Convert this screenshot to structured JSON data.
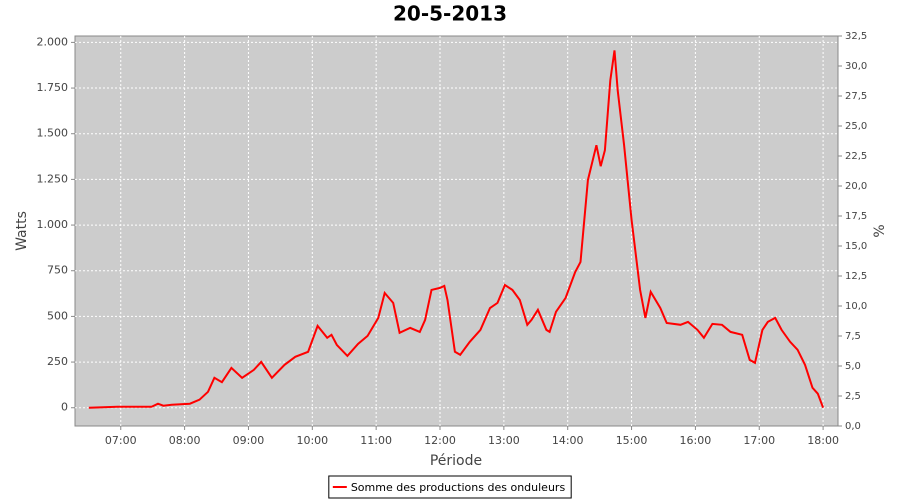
{
  "chart_data": {
    "type": "line",
    "title": "20-5-2013",
    "x_label": "Période",
    "y_label": "Watts",
    "y2_label": "%",
    "x": [
      "06:30",
      "06:57",
      "07:29",
      "07:35",
      "07:40",
      "07:48",
      "08:05",
      "08:14",
      "08:22",
      "08:28",
      "08:35",
      "08:44",
      "08:54",
      "09:05",
      "09:12",
      "09:22",
      "09:34",
      "09:44",
      "09:56",
      "10:05",
      "10:14",
      "10:18",
      "10:23",
      "10:33",
      "10:43",
      "10:52",
      "11:02",
      "11:08",
      "11:16",
      "11:22",
      "11:32",
      "11:41",
      "11:46",
      "11:52",
      "12:00",
      "12:04",
      "12:07",
      "12:14",
      "12:19",
      "12:28",
      "12:38",
      "12:47",
      "12:54",
      "13:01",
      "13:08",
      "13:15",
      "13:22",
      "13:26",
      "13:32",
      "13:40",
      "13:43",
      "13:49",
      "13:58",
      "14:07",
      "14:12",
      "14:19",
      "14:27",
      "14:31",
      "14:35",
      "14:40",
      "14:44",
      "14:47",
      "14:53",
      "15:00",
      "15:08",
      "15:13",
      "15:18",
      "15:27",
      "15:33",
      "15:46",
      "15:53",
      "16:02",
      "16:08",
      "16:16",
      "16:25",
      "16:33",
      "16:44",
      "16:51",
      "16:56",
      "17:03",
      "17:08",
      "17:15",
      "17:21",
      "17:29",
      "17:36",
      "17:43",
      "17:50",
      "17:55",
      "18:00"
    ],
    "series": [
      {
        "name": "Somme des productions des onduleurs",
        "color": "#ff0000",
        "values": [
          0,
          5,
          5,
          22,
          11,
          16,
          22,
          44,
          87,
          164,
          140,
          218,
          164,
          207,
          251,
          164,
          235,
          279,
          306,
          448,
          383,
          399,
          344,
          284,
          350,
          393,
          492,
          628,
          574,
          410,
          437,
          415,
          481,
          645,
          656,
          667,
          590,
          306,
          290,
          361,
          426,
          546,
          574,
          672,
          645,
          590,
          454,
          481,
          536,
          426,
          415,
          525,
          601,
          743,
          798,
          1246,
          1437,
          1322,
          1410,
          1792,
          1956,
          1737,
          1437,
          1027,
          645,
          492,
          634,
          546,
          464,
          454,
          470,
          426,
          383,
          459,
          454,
          415,
          399,
          262,
          246,
          426,
          470,
          492,
          426,
          361,
          317,
          235,
          109,
          77,
          0
        ]
      }
    ],
    "xlim": [
      "06:17",
      "18:14"
    ],
    "xticks": [
      "07:00",
      "08:00",
      "09:00",
      "10:00",
      "11:00",
      "12:00",
      "13:00",
      "14:00",
      "15:00",
      "16:00",
      "17:00",
      "18:00"
    ],
    "ylim": [
      -100,
      2035
    ],
    "yticks": [
      0,
      250,
      500,
      750,
      {
        "value": 1000,
        "label": "1.000"
      },
      {
        "value": 1250,
        "label": "1.250"
      },
      {
        "value": 1500,
        "label": "1.500"
      },
      {
        "value": 1750,
        "label": "1.750"
      },
      {
        "value": 2000,
        "label": "2.000"
      }
    ],
    "y2lim": [
      0,
      32.5
    ],
    "y2ticks": [
      {
        "value": 0,
        "label": "0,0"
      },
      {
        "value": 2.5,
        "label": "2,5"
      },
      {
        "value": 5,
        "label": "5,0"
      },
      {
        "value": 7.5,
        "label": "7,5"
      },
      {
        "value": 10,
        "label": "10,0"
      },
      {
        "value": 12.5,
        "label": "12,5"
      },
      {
        "value": 15,
        "label": "15,0"
      },
      {
        "value": 17.5,
        "label": "17,5"
      },
      {
        "value": 20,
        "label": "20,0"
      },
      {
        "value": 22.5,
        "label": "22,5"
      },
      {
        "value": 25,
        "label": "25,0"
      },
      {
        "value": 27.5,
        "label": "27,5"
      },
      {
        "value": 30,
        "label": "30,0"
      },
      {
        "value": 32.5,
        "label": "32,5"
      }
    ],
    "grid": true,
    "legend": "bottom",
    "plot_background": "#cccccc"
  }
}
